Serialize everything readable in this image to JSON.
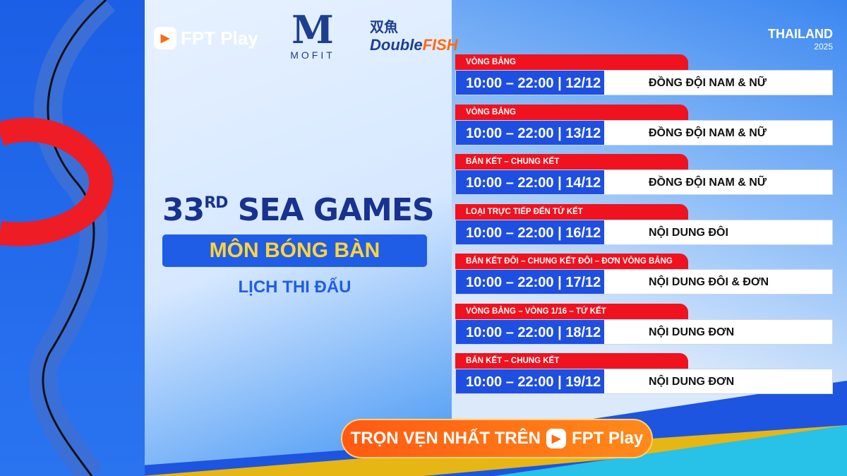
{
  "brand": {
    "fpt": "FPT Play",
    "mofit_mark": "M",
    "mofit": "MOFIT",
    "doublefish_cn": "双魚",
    "doublefish_a": "Double",
    "doublefish_b": "FISH",
    "thailand": "THAILAND",
    "year": "2025"
  },
  "headline": {
    "number": "33",
    "suffix": "RD",
    "name": "SEA GAMES",
    "sport": "MÔN BÓNG BÀN",
    "subtitle": "LỊCH THI ĐẤU"
  },
  "schedule": [
    {
      "stage": "VÒNG BẢNG",
      "time": "10:00 – 22:00 | 12/12",
      "event": "ĐỒNG ĐỘI NAM & NỮ"
    },
    {
      "stage": "VÒNG BẢNG",
      "time": "10:00 – 22:00 | 13/12",
      "event": "ĐỒNG ĐỘI NAM & NỮ"
    },
    {
      "stage": "BÁN KẾT – CHUNG KẾT",
      "time": "10:00 – 22:00 | 14/12",
      "event": "ĐỒNG ĐỘI NAM & NỮ"
    },
    {
      "stage": "LOẠI TRỰC TIẾP ĐẾN TỨ KẾT",
      "time": "10:00 – 22:00 | 16/12",
      "event": "NỘI DUNG ĐÔI"
    },
    {
      "stage": "BÁN KẾT ĐÔI – CHUNG KẾT ĐÔI – ĐƠN VÒNG BẢNG",
      "time": "10:00 – 22:00 | 17/12",
      "event": "NỘI DUNG ĐÔI & ĐƠN"
    },
    {
      "stage": "VÒNG BẢNG – VÒNG 1/16 – TỨ KẾT",
      "time": "10:00 – 22:00 | 18/12",
      "event": "NỘI DUNG ĐƠN"
    },
    {
      "stage": "BÁN KẾT – CHUNG KẾT",
      "time": "10:00 – 22:00 | 19/12",
      "event": "NỘI DUNG ĐƠN"
    }
  ],
  "cta": {
    "label": "TRỌN VẸN NHẤT TRÊN",
    "brand": "FPT Play"
  },
  "colors": {
    "red": "#f0121f",
    "blue": "#1f4fe0",
    "yellow": "#ffd43b",
    "orange": "#ff6a13"
  }
}
